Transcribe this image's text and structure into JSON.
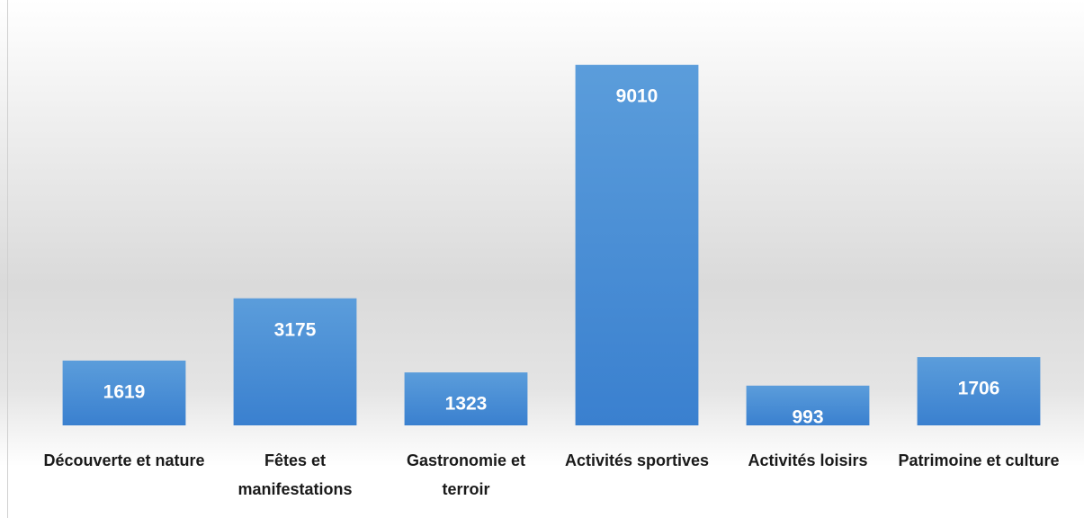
{
  "chart_data": {
    "type": "bar",
    "categories": [
      "Découverte et nature",
      "Fêtes et manifestations",
      "Gastronomie et terroir",
      "Activités sportives",
      "Activités loisirs",
      "Patrimoine et culture"
    ],
    "values": [
      1619,
      3175,
      1323,
      9010,
      993,
      1706
    ],
    "color": "#4a8fd8",
    "ylim": [
      0,
      10000
    ]
  }
}
